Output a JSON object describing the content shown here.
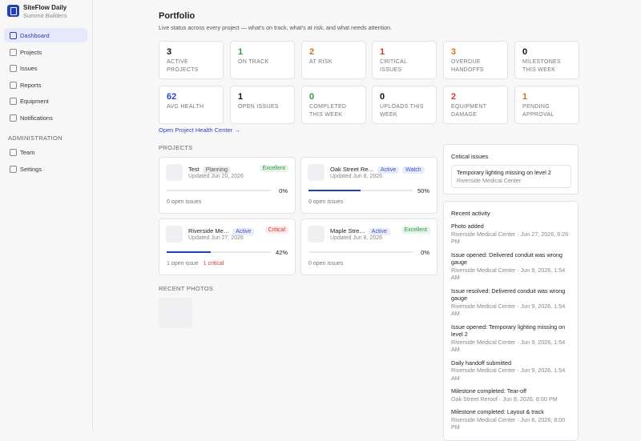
{
  "sidebar": {
    "app_name": "SiteFlow Daily",
    "org": "Summit Builders",
    "nav": [
      "Dashboard",
      "Projects",
      "Issues",
      "Reports",
      "Equipment",
      "Notifications"
    ],
    "admin_heading": "ADMINISTRATION",
    "admin_nav": [
      "Team",
      "Settings"
    ]
  },
  "header": {
    "title": "Portfolio",
    "subtitle": "Live status across every project — what's on track, what's at risk, and what needs attention."
  },
  "stats": [
    {
      "value": "3",
      "label": "ACTIVE PROJECTS",
      "color": "#111111"
    },
    {
      "value": "1",
      "label": "ON TRACK",
      "color": "#2f9a45"
    },
    {
      "value": "2",
      "label": "AT RISK",
      "color": "#d0701c"
    },
    {
      "value": "1",
      "label": "CRITICAL ISSUES",
      "color": "#d33a2c"
    },
    {
      "value": "3",
      "label": "OVERDUE HANDOFFS",
      "color": "#d0701c"
    },
    {
      "value": "0",
      "label": "MILESTONES THIS WEEK",
      "color": "#111111"
    },
    {
      "value": "62",
      "label": "AVG HEALTH",
      "color": "#2a46c8"
    },
    {
      "value": "1",
      "label": "OPEN ISSUES",
      "color": "#111111"
    },
    {
      "value": "0",
      "label": "COMPLETED THIS WEEK",
      "color": "#2f9a45"
    },
    {
      "value": "0",
      "label": "UPLOADS THIS WEEK",
      "color": "#111111"
    },
    {
      "value": "2",
      "label": "EQUIPMENT DAMAGE",
      "color": "#d33a2c"
    },
    {
      "value": "1",
      "label": "PENDING APPROVAL",
      "color": "#d0701c"
    }
  ],
  "health_link": "Open Project Health Center →",
  "projects_heading": "PROJECTS",
  "projects": [
    {
      "name": "Test",
      "badges": [
        {
          "label": "Planning",
          "color": "#555555"
        }
      ],
      "health": {
        "label": "Excellent",
        "color": "#2f9a45"
      },
      "updated": "Updated Jun 20, 2026",
      "progress": 0,
      "progress_label": "0%",
      "issues": "0 open issues"
    },
    {
      "name": "Oak Street Re…",
      "badges": [
        {
          "label": "Active",
          "color": "#3a4fc8"
        },
        {
          "label": "Watch",
          "color": "#3a4fc8"
        }
      ],
      "updated": "Updated Jun 8, 2026",
      "progress": 50,
      "progress_label": "50%",
      "issues": "0 open issues"
    },
    {
      "name": "Riverside Me…",
      "badges": [
        {
          "label": "Active",
          "color": "#3a4fc8"
        }
      ],
      "health": {
        "label": "Critical",
        "color": "#d33a2c"
      },
      "updated": "Updated Jun 27, 2026",
      "progress": 42,
      "progress_label": "42%",
      "issues": "1 open issue",
      "critical": "1 critical"
    },
    {
      "name": "Maple Stre…",
      "badges": [
        {
          "label": "Active",
          "color": "#3a4fc8"
        }
      ],
      "health": {
        "label": "Excellent",
        "color": "#2f9a45"
      },
      "updated": "Updated Jun 8, 2026",
      "progress": 0,
      "progress_label": "0%",
      "issues": "0 open issues"
    }
  ],
  "photos_heading": "RECENT PHOTOS",
  "critical_issues": {
    "title": "Critical issues",
    "items": [
      {
        "title": "Temporary lighting missing on level 2",
        "project": "Riverside Medical Center"
      }
    ]
  },
  "activity": {
    "title": "Recent activity",
    "items": [
      {
        "title": "Photo added",
        "meta": "Riverside Medical Center · Jun 27, 2026, 6:26 PM"
      },
      {
        "title": "Issue opened: Delivered conduit was wrong gauge",
        "meta": "Riverside Medical Center · Jun 9, 2026, 1:54 AM"
      },
      {
        "title": "Issue resolved: Delivered conduit was wrong gauge",
        "meta": "Riverside Medical Center · Jun 9, 2026, 1:54 AM"
      },
      {
        "title": "Issue opened: Temporary lighting missing on level 2",
        "meta": "Riverside Medical Center · Jun 9, 2026, 1:54 AM"
      },
      {
        "title": "Daily handoff submitted",
        "meta": "Riverside Medical Center · Jun 9, 2026, 1:54 AM"
      },
      {
        "title": "Milestone completed: Tear-off",
        "meta": "Oak Street Reroof · Jun 8, 2026, 8:00 PM"
      },
      {
        "title": "Milestone completed: Layout & track",
        "meta": "Riverside Medical Center · Jun 8, 2026, 8:00 PM"
      }
    ]
  }
}
